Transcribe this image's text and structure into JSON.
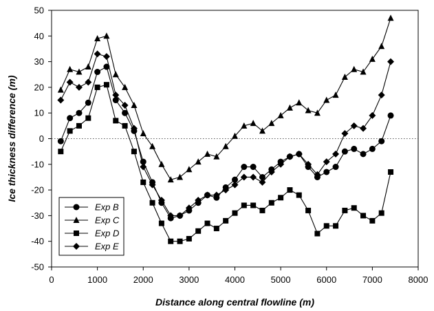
{
  "chart_data": {
    "type": "line",
    "xlabel": "Distance along central flowline (m)",
    "ylabel": "Ice thickness difference (m)",
    "xlim": [
      0,
      8000
    ],
    "ylim": [
      -50,
      50
    ],
    "xticks": [
      0,
      1000,
      2000,
      3000,
      4000,
      5000,
      6000,
      7000,
      8000
    ],
    "yticks": [
      -50,
      -40,
      -30,
      -20,
      -10,
      0,
      10,
      20,
      30,
      40,
      50
    ],
    "grid": false,
    "zero_reference_line": "dotted",
    "legend_position": "bottom-left",
    "series": [
      {
        "name": "Exp B",
        "marker": "circle",
        "color": "#000000",
        "x": [
          200,
          400,
          600,
          800,
          1000,
          1200,
          1400,
          1600,
          1800,
          2000,
          2200,
          2400,
          2600,
          2800,
          3000,
          3200,
          3400,
          3600,
          3800,
          4000,
          4200,
          4400,
          4600,
          4800,
          5000,
          5200,
          5400,
          5600,
          5800,
          6000,
          6200,
          6400,
          6600,
          6800,
          7000,
          7200,
          7400
        ],
        "y": [
          -1,
          8,
          10,
          14,
          26,
          28,
          15,
          10,
          3,
          -9,
          -17,
          -25,
          -31,
          -30,
          -28,
          -25,
          -22,
          -23,
          -19,
          -16,
          -11,
          -11,
          -15,
          -12,
          -9,
          -7,
          -6,
          -11,
          -15,
          -13,
          -11,
          -5,
          -4,
          -6,
          -4,
          -1,
          9
        ]
      },
      {
        "name": "Exp C",
        "marker": "triangle",
        "color": "#000000",
        "x": [
          200,
          400,
          600,
          800,
          1000,
          1200,
          1400,
          1600,
          1800,
          2000,
          2200,
          2400,
          2600,
          2800,
          3000,
          3200,
          3400,
          3600,
          3800,
          4000,
          4200,
          4400,
          4600,
          4800,
          5000,
          5200,
          5400,
          5600,
          5800,
          6000,
          6200,
          6400,
          6600,
          6800,
          7000,
          7200,
          7400
        ],
        "y": [
          19,
          27,
          26,
          28,
          39,
          40,
          25,
          20,
          13,
          2,
          -3,
          -10,
          -16,
          -15,
          -12,
          -9,
          -6,
          -7,
          -3,
          1,
          5,
          6,
          3,
          6,
          9,
          12,
          14,
          11,
          10,
          15,
          17,
          24,
          27,
          26,
          31,
          36,
          47
        ]
      },
      {
        "name": "Exp D",
        "marker": "square",
        "color": "#000000",
        "x": [
          200,
          400,
          600,
          800,
          1000,
          1200,
          1400,
          1600,
          1800,
          2000,
          2200,
          2400,
          2600,
          2800,
          3000,
          3200,
          3400,
          3600,
          3800,
          4000,
          4200,
          4400,
          4600,
          4800,
          5000,
          5200,
          5400,
          5600,
          5800,
          6000,
          6200,
          6400,
          6600,
          6800,
          7000,
          7200,
          7400
        ],
        "y": [
          -5,
          3,
          5,
          8,
          20,
          21,
          7,
          5,
          -5,
          -17,
          -25,
          -33,
          -40,
          -40,
          -39,
          -36,
          -33,
          -35,
          -32,
          -29,
          -26,
          -26,
          -28,
          -25,
          -23,
          -20,
          -22,
          -28,
          -37,
          -34,
          -34,
          -28,
          -27,
          -30,
          -32,
          -29,
          -13
        ]
      },
      {
        "name": "Exp E",
        "marker": "diamond",
        "color": "#000000",
        "x": [
          200,
          400,
          600,
          800,
          1000,
          1200,
          1400,
          1600,
          1800,
          2000,
          2200,
          2400,
          2600,
          2800,
          3000,
          3200,
          3400,
          3600,
          3800,
          4000,
          4200,
          4400,
          4600,
          4800,
          5000,
          5200,
          5400,
          5600,
          5800,
          6000,
          6200,
          6400,
          6600,
          6800,
          7000,
          7200,
          7400
        ],
        "y": [
          15,
          22,
          20,
          22,
          33,
          32,
          17,
          13,
          4,
          -11,
          -18,
          -24,
          -30,
          -30,
          -27,
          -24,
          -22,
          -22,
          -20,
          -18,
          -15,
          -15,
          -17,
          -13,
          -10,
          -7,
          -6,
          -10,
          -14,
          -9,
          -6,
          2,
          5,
          4,
          9,
          17,
          30
        ]
      }
    ]
  }
}
